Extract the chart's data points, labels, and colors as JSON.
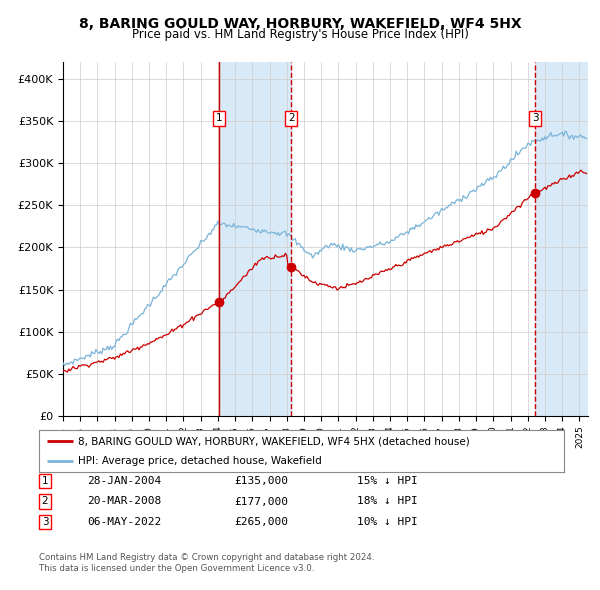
{
  "title": "8, BARING GOULD WAY, HORBURY, WAKEFIELD, WF4 5HX",
  "subtitle": "Price paid vs. HM Land Registry's House Price Index (HPI)",
  "ylim": [
    0,
    420000
  ],
  "yticks": [
    0,
    50000,
    100000,
    150000,
    200000,
    250000,
    300000,
    350000,
    400000
  ],
  "ytick_labels": [
    "£0",
    "£50K",
    "£100K",
    "£150K",
    "£200K",
    "£250K",
    "£300K",
    "£350K",
    "£400K"
  ],
  "hpi_color": "#7ab4d8",
  "price_color": "#cc0000",
  "marker_color": "#cc0000",
  "vline_color": "#cc0000",
  "shade_color": "#d8eaf7",
  "t1_year": 2004.08,
  "t1_price": 135000,
  "t2_year": 2008.25,
  "t2_price": 177000,
  "t3_year": 2022.42,
  "t3_price": 265000,
  "legend_line1": "8, BARING GOULD WAY, HORBURY, WAKEFIELD, WF4 5HX (detached house)",
  "legend_line2": "HPI: Average price, detached house, Wakefield",
  "table_data": [
    [
      1,
      "28-JAN-2004",
      "£135,000",
      "15% ↓ HPI"
    ],
    [
      2,
      "20-MAR-2008",
      "£177,000",
      "18% ↓ HPI"
    ],
    [
      3,
      "06-MAY-2022",
      "£265,000",
      "10% ↓ HPI"
    ]
  ],
  "footer1": "Contains HM Land Registry data © Crown copyright and database right 2024.",
  "footer2": "This data is licensed under the Open Government Licence v3.0.",
  "background_color": "#ffffff",
  "grid_color": "#cccccc",
  "xlim_start": 1995,
  "xlim_end": 2025.5
}
